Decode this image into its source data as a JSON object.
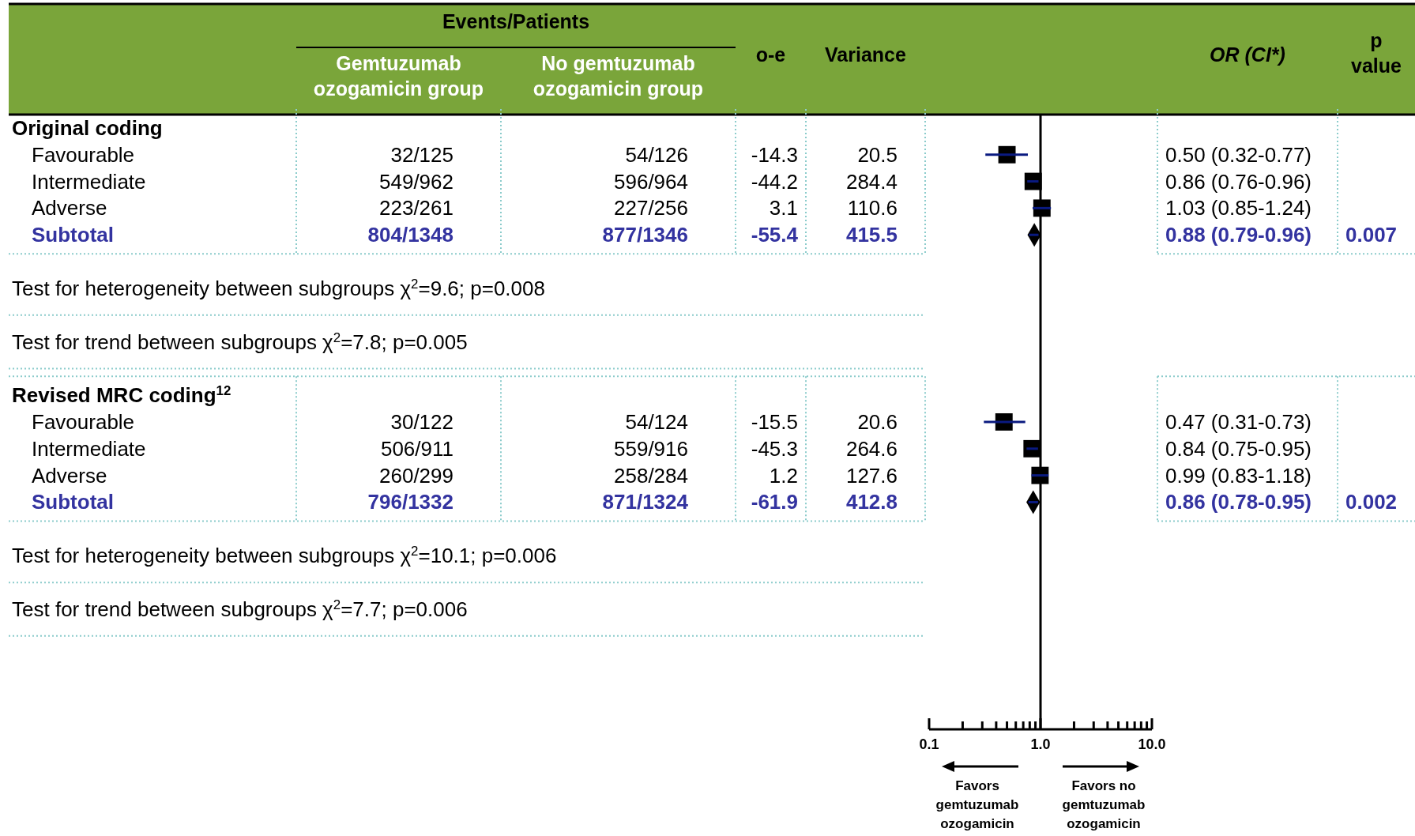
{
  "chart_data": [
    {
      "type": "other",
      "title": "Events/Patients",
      "categories": [
        "Gemtuzumab ozogamicin group",
        "No gemtuzumab ozogamicin group",
        "o-e",
        "Variance",
        "OR (CI*)",
        "p value"
      ],
      "y_categories": [
        "Original coding",
        "Favourable",
        "Intermediate",
        "Adverse",
        "Subtotal",
        "Test for heterogeneity between subgroups χ$^{2}$=9.6; p=0.008",
        "Test for trend between subgroups χ$^{2}$=7.8; p=0.005",
        "Revised MRC coding$^{12}$",
        "Favourable",
        "Intermediate",
        "Adverse",
        "Subtotal",
        "Test for heterogeneity between subgroups χ$^{2}$=10.1; p=0.006",
        "Test for trend between subgroups χ$^{2}$=7.7; p=0.006"
      ],
      "colors": [
        "#000000",
        null,
        null,
        null,
        "#3333a0",
        null,
        null,
        "#000000",
        null,
        null,
        null,
        "#3333a0",
        null,
        null
      ],
      "cell_labels": [
        null,
        [
          "32/125",
          "54/126",
          "-14.3",
          "20.5",
          "0.50 (0.32-0.77)",
          null
        ],
        [
          "549/962",
          "596/964",
          "-44.2",
          "284.4",
          "0.86 (0.76-0.96)",
          null
        ],
        [
          "223/261",
          "227/256",
          "3.1",
          "110.6",
          "1.03 (0.85-1.24)",
          null
        ],
        [
          "804/1348",
          "877/1346",
          "-55.4",
          "415.5",
          "0.88 (0.79-0.96)",
          "0.007"
        ],
        null,
        null,
        null,
        [
          "30/122",
          "54/124",
          "-15.5",
          "20.6",
          "0.47 (0.31-0.73)",
          null
        ],
        [
          "506/911",
          "559/916",
          "-45.3",
          "264.6",
          "0.84 (0.75-0.95)",
          null
        ],
        [
          "260/299",
          "258/284",
          "1.2",
          "127.6",
          "0.99 (0.83-1.18)",
          null
        ],
        [
          "796/1332",
          "871/1324",
          "-61.9",
          "412.8",
          "0.86 (0.78-0.95)",
          "0.002"
        ],
        null,
        null
      ]
    },
    {
      "type": "scatter",
      "orientation": "horizontal",
      "log": "x",
      "tick_labels": "x",
      "categories": [
        null,
        null,
        null,
        null,
        null,
        null,
        null,
        null,
        null,
        null,
        null,
        null,
        null,
        null,
        null,
        null,
        null,
        null,
        null,
        null,
        null,
        null,
        null
      ],
      "series": [
        {
          "color": "#000000",
          "marker": "square",
          "values": [
            null,
            0.5,
            0.86,
            1.03,
            null,
            null,
            null,
            null,
            null,
            null,
            null,
            0.47,
            0.84,
            0.99,
            null,
            null,
            null,
            null,
            null,
            null,
            null,
            null,
            null
          ],
          "errors": [
            null,
            [
              0.32,
              0.77
            ],
            [
              0.76,
              0.96
            ],
            [
              0.85,
              1.24
            ],
            null,
            null,
            null,
            null,
            null,
            null,
            null,
            [
              0.31,
              0.73
            ],
            [
              0.75,
              0.95
            ],
            [
              0.83,
              1.18
            ],
            null,
            null,
            null,
            null,
            null,
            null,
            null,
            null,
            null
          ]
        },
        {
          "color": "#000000",
          "marker": "diamond",
          "values": [
            null,
            null,
            null,
            null,
            0.88,
            null,
            null,
            null,
            null,
            null,
            null,
            null,
            null,
            null,
            0.86,
            null,
            null,
            null,
            null,
            null,
            null,
            null,
            null
          ],
          "errors": [
            null,
            null,
            null,
            null,
            [
              0.79,
              0.96
            ],
            null,
            null,
            null,
            null,
            null,
            null,
            null,
            null,
            null,
            [
              0.78,
              0.95
            ],
            null,
            null,
            null,
            null,
            null,
            null,
            null,
            null
          ]
        }
      ],
      "xlim": [
        0.1,
        10
      ],
      "xticks": [
        0.1,
        {
          "value": 0.2,
          "label": null
        },
        {
          "value": 0.3,
          "label": null
        },
        {
          "value": 0.4,
          "label": null
        },
        {
          "value": 0.5,
          "label": null
        },
        {
          "value": 0.6,
          "label": null
        },
        {
          "value": 0.7,
          "label": null
        },
        {
          "value": 0.8,
          "label": null
        },
        {
          "value": 0.9,
          "label": null
        },
        {
          "value": 1,
          "label": "1.0"
        },
        {
          "value": 2,
          "label": null
        },
        {
          "value": 3,
          "label": null
        },
        {
          "value": 4,
          "label": null
        },
        {
          "value": 5,
          "label": null
        },
        {
          "value": 6,
          "label": null
        },
        {
          "value": 7,
          "label": null
        },
        {
          "value": 8,
          "label": null
        },
        {
          "value": 9,
          "label": null
        },
        {
          "value": 10,
          "label": "10.0"
        }
      ],
      "ref_lines": [
        {
          "axis": "x",
          "value": 1
        }
      ],
      "annotations": [
        "Favors gemtuzumab ozogamicin",
        "Favors no gemtuzumab ozogamicin"
      ]
    }
  ]
}
